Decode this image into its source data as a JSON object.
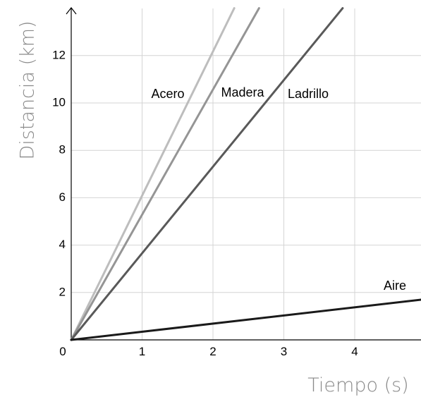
{
  "chart_data": {
    "type": "line",
    "title": "",
    "xlabel": "Tiempo (s)",
    "ylabel": "Distancia (km)",
    "xlim": [
      0,
      4.95
    ],
    "ylim": [
      0,
      14
    ],
    "x_ticks": [
      "0",
      "1",
      "2",
      "3",
      "4"
    ],
    "y_ticks": [
      "2",
      "4",
      "6",
      "8",
      "10",
      "12"
    ],
    "grid": true,
    "series": [
      {
        "name": "Acero",
        "color": "#bdbdbd",
        "x": [
          0,
          2.3
        ],
        "y": [
          0,
          14
        ]
      },
      {
        "name": "Madera",
        "color": "#959595",
        "x": [
          0,
          2.65
        ],
        "y": [
          0,
          14
        ]
      },
      {
        "name": "Ladrillo",
        "color": "#595959",
        "x": [
          0,
          3.83
        ],
        "y": [
          0,
          14
        ]
      },
      {
        "name": "Aire",
        "color": "#1a1a1a",
        "x": [
          0,
          4.95
        ],
        "y": [
          0,
          1.7
        ]
      }
    ]
  }
}
